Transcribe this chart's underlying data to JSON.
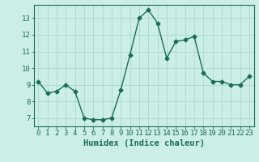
{
  "x": [
    0,
    1,
    2,
    3,
    4,
    5,
    6,
    7,
    8,
    9,
    10,
    11,
    12,
    13,
    14,
    15,
    16,
    17,
    18,
    19,
    20,
    21,
    22,
    23
  ],
  "y": [
    9.2,
    8.5,
    8.6,
    9.0,
    8.6,
    7.0,
    6.9,
    6.9,
    7.0,
    8.7,
    10.8,
    13.0,
    13.5,
    12.7,
    10.6,
    11.6,
    11.7,
    11.9,
    9.7,
    9.2,
    9.2,
    9.0,
    9.0,
    9.5
  ],
  "line_color": "#1a6b5a",
  "marker": "D",
  "marker_size": 2.5,
  "bg_color": "#cceee8",
  "grid_color": "#aad8d0",
  "xlabel": "Humidex (Indice chaleur)",
  "xlim": [
    -0.5,
    23.5
  ],
  "ylim": [
    6.5,
    13.8
  ],
  "yticks": [
    7,
    8,
    9,
    10,
    11,
    12,
    13
  ],
  "xticks": [
    0,
    1,
    2,
    3,
    4,
    5,
    6,
    7,
    8,
    9,
    10,
    11,
    12,
    13,
    14,
    15,
    16,
    17,
    18,
    19,
    20,
    21,
    22,
    23
  ],
  "tick_color": "#1a6b5a",
  "label_color": "#1a6b5a",
  "font_size_label": 7.5,
  "font_size_tick": 6.5,
  "line_width": 1.0
}
